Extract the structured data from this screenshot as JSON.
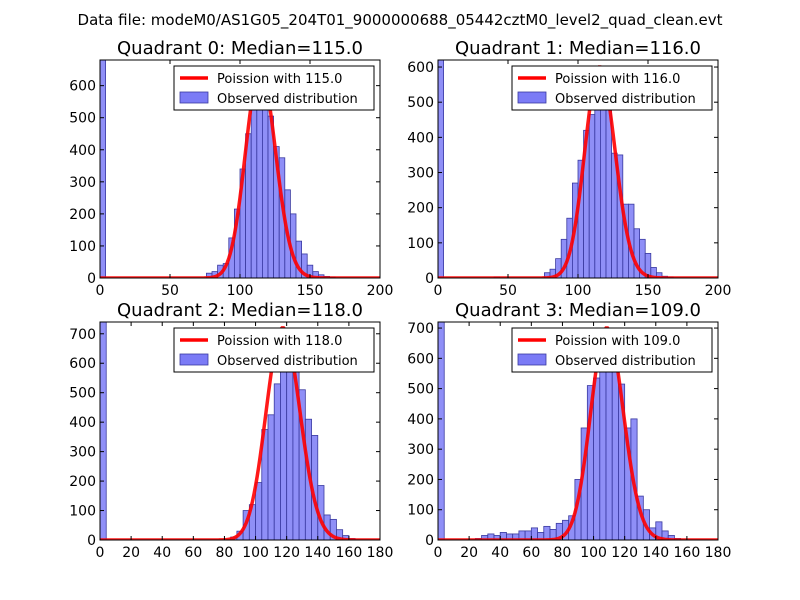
{
  "suptitle": "Data file: modeM0/AS1G05_204T01_9000000688_05442cztM0_level2_quad_clean.evt",
  "colors": {
    "bar_fill": "#7b7bf6",
    "bar_edge": "#3a3aa0",
    "line": "#ff0000",
    "axes": "#000000"
  },
  "chart_data": [
    {
      "type": "bar",
      "title": "Quadrant 0: Median=115.0",
      "xlim": [
        0,
        200
      ],
      "ylim": [
        0,
        680
      ],
      "xticks": [
        0,
        50,
        100,
        150,
        200
      ],
      "yticks": [
        0,
        100,
        200,
        300,
        400,
        500,
        600
      ],
      "legend": {
        "line": "Poission with 115.0",
        "bars": "Observed distribution",
        "loc": "top-right"
      },
      "bin_width": 4,
      "bars": [
        [
          0,
          680
        ],
        [
          76,
          15
        ],
        [
          80,
          20
        ],
        [
          84,
          40
        ],
        [
          88,
          45
        ],
        [
          92,
          125
        ],
        [
          96,
          215
        ],
        [
          100,
          340
        ],
        [
          104,
          450
        ],
        [
          108,
          525
        ],
        [
          112,
          600
        ],
        [
          116,
          565
        ],
        [
          120,
          505
        ],
        [
          124,
          410
        ],
        [
          128,
          375
        ],
        [
          132,
          275
        ],
        [
          136,
          200
        ],
        [
          140,
          115
        ],
        [
          144,
          75
        ],
        [
          148,
          40
        ],
        [
          152,
          20
        ],
        [
          156,
          10
        ],
        [
          160,
          5
        ],
        [
          164,
          3
        ]
      ],
      "poisson": {
        "mean": 115.0,
        "scale": 650
      }
    },
    {
      "type": "bar",
      "title": "Quadrant 1: Median=116.0",
      "xlim": [
        0,
        200
      ],
      "ylim": [
        0,
        620
      ],
      "xticks": [
        0,
        50,
        100,
        150,
        200
      ],
      "yticks": [
        0,
        100,
        200,
        300,
        400,
        500,
        600
      ],
      "legend": {
        "line": "Poission with 116.0",
        "bars": "Observed distribution",
        "loc": "top-right"
      },
      "bin_width": 4,
      "bars": [
        [
          0,
          620
        ],
        [
          40,
          3
        ],
        [
          76,
          15
        ],
        [
          80,
          25
        ],
        [
          84,
          55
        ],
        [
          88,
          110
        ],
        [
          92,
          170
        ],
        [
          96,
          270
        ],
        [
          100,
          335
        ],
        [
          104,
          420
        ],
        [
          108,
          465
        ],
        [
          112,
          560
        ],
        [
          116,
          520
        ],
        [
          120,
          480
        ],
        [
          124,
          355
        ],
        [
          128,
          350
        ],
        [
          132,
          210
        ],
        [
          136,
          210
        ],
        [
          140,
          140
        ],
        [
          144,
          110
        ],
        [
          148,
          70
        ],
        [
          152,
          30
        ],
        [
          156,
          15
        ],
        [
          160,
          5
        ],
        [
          164,
          3
        ]
      ],
      "poisson": {
        "mean": 116.0,
        "scale": 600
      }
    },
    {
      "type": "bar",
      "title": "Quadrant 2: Median=118.0",
      "xlim": [
        0,
        180
      ],
      "ylim": [
        0,
        740
      ],
      "xticks": [
        0,
        20,
        40,
        60,
        80,
        100,
        120,
        140,
        160,
        180
      ],
      "yticks": [
        0,
        100,
        200,
        300,
        400,
        500,
        600,
        700
      ],
      "legend": {
        "line": "Poission with 118.0",
        "bars": "Observed distribution",
        "loc": "top-right"
      },
      "bin_width": 4,
      "bars": [
        [
          0,
          740
        ],
        [
          84,
          10
        ],
        [
          88,
          30
        ],
        [
          92,
          100
        ],
        [
          96,
          120
        ],
        [
          100,
          195
        ],
        [
          104,
          375
        ],
        [
          108,
          425
        ],
        [
          112,
          530
        ],
        [
          116,
          680
        ],
        [
          120,
          610
        ],
        [
          124,
          690
        ],
        [
          128,
          510
        ],
        [
          132,
          410
        ],
        [
          136,
          355
        ],
        [
          140,
          185
        ],
        [
          144,
          85
        ],
        [
          148,
          70
        ],
        [
          152,
          35
        ],
        [
          156,
          15
        ],
        [
          160,
          5
        ]
      ],
      "poisson": {
        "mean": 118.0,
        "scale": 720
      }
    },
    {
      "type": "bar",
      "title": "Quadrant 3: Median=109.0",
      "xlim": [
        0,
        180
      ],
      "ylim": [
        0,
        720
      ],
      "xticks": [
        0,
        20,
        40,
        60,
        80,
        100,
        120,
        140,
        160,
        180
      ],
      "yticks": [
        0,
        100,
        200,
        300,
        400,
        500,
        600,
        700
      ],
      "legend": {
        "line": "Poission with 109.0",
        "bars": "Observed distribution",
        "loc": "top-right"
      },
      "bin_width": 4,
      "bars": [
        [
          0,
          720
        ],
        [
          24,
          5
        ],
        [
          28,
          15
        ],
        [
          32,
          20
        ],
        [
          36,
          15
        ],
        [
          40,
          25
        ],
        [
          44,
          20
        ],
        [
          48,
          20
        ],
        [
          52,
          30
        ],
        [
          56,
          30
        ],
        [
          60,
          40
        ],
        [
          64,
          25
        ],
        [
          68,
          45
        ],
        [
          72,
          35
        ],
        [
          76,
          55
        ],
        [
          80,
          65
        ],
        [
          84,
          80
        ],
        [
          88,
          200
        ],
        [
          92,
          370
        ],
        [
          96,
          510
        ],
        [
          100,
          535
        ],
        [
          104,
          590
        ],
        [
          108,
          640
        ],
        [
          112,
          560
        ],
        [
          116,
          515
        ],
        [
          120,
          370
        ],
        [
          124,
          400
        ],
        [
          128,
          145
        ],
        [
          132,
          100
        ],
        [
          136,
          40
        ],
        [
          140,
          60
        ],
        [
          144,
          30
        ],
        [
          148,
          15
        ],
        [
          152,
          5
        ]
      ],
      "poisson": {
        "mean": 109.0,
        "scale": 700
      }
    }
  ]
}
